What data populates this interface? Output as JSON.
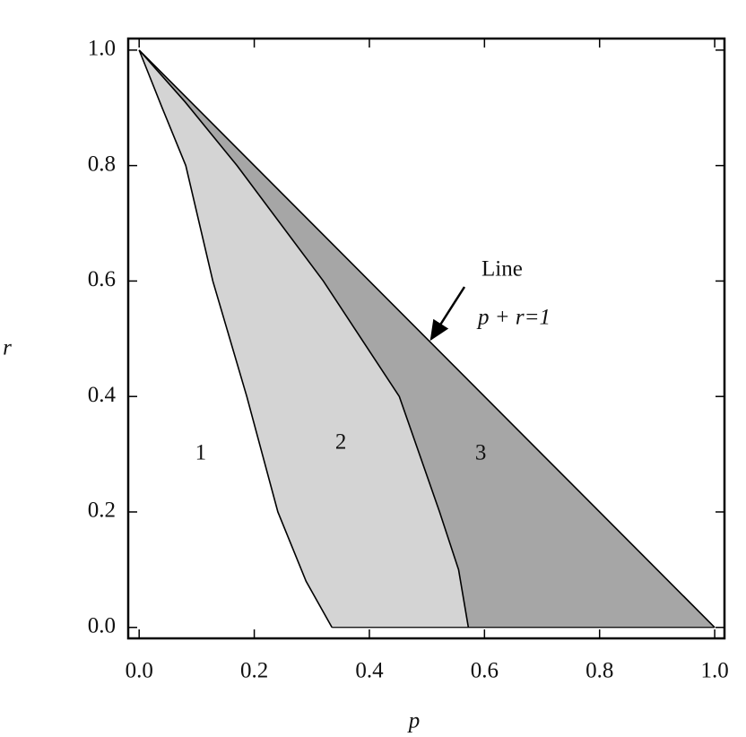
{
  "chart_data": {
    "type": "region",
    "x_label": "p",
    "y_label": "r",
    "xlim": [
      -0.019,
      1.017
    ],
    "ylim": [
      -0.019,
      1.02
    ],
    "xticks": [
      {
        "value": 0,
        "label": "0.0"
      },
      {
        "value": 0.2,
        "label": "0.2"
      },
      {
        "value": 0.4,
        "label": "0.4"
      },
      {
        "value": 0.6,
        "label": "0.6"
      },
      {
        "value": 0.8,
        "label": "0.8"
      },
      {
        "value": 1,
        "label": "1.0"
      }
    ],
    "yticks": [
      {
        "value": 0,
        "label": "0.0"
      },
      {
        "value": 0.2,
        "label": "0.2"
      },
      {
        "value": 0.4,
        "label": "0.4"
      },
      {
        "value": 0.6,
        "label": "0.6"
      },
      {
        "value": 0.8,
        "label": "0.8"
      },
      {
        "value": 1,
        "label": "1.0"
      }
    ],
    "series": [
      {
        "color": "#000000",
        "x": [
          0,
          0.04,
          0.081,
          0.128,
          0.187,
          0.241,
          0.29,
          0.335
        ],
        "values": [
          1,
          0.9,
          0.8,
          0.6,
          0.4,
          0.2,
          0.08,
          0
        ]
      },
      {
        "color": "#000000",
        "x": [
          0,
          0.08,
          0.17,
          0.32,
          0.452,
          0.522,
          0.555,
          0.572
        ],
        "values": [
          1,
          0.91,
          0.8,
          0.6,
          0.4,
          0.2,
          0.1,
          0
        ]
      },
      {
        "color": "#000000",
        "x": [
          0,
          1
        ],
        "values": [
          1,
          0
        ]
      }
    ],
    "regions": [
      {
        "label": "1",
        "color": "#ffffff"
      },
      {
        "label": "2",
        "color": "#d4d4d4"
      },
      {
        "label": "3",
        "color": "#a6a6a6"
      }
    ],
    "annotation": {
      "lines": [
        "Line",
        "p + r=1"
      ]
    }
  }
}
